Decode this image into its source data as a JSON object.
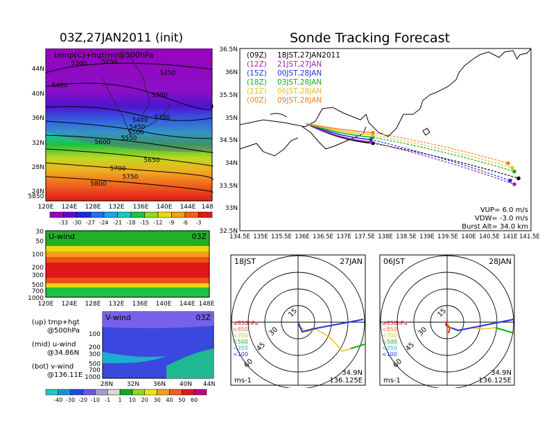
{
  "left": {
    "title": "03Z,27JAN2011 (init)",
    "map_label": "temp(C)+hgt(m)@500hPa",
    "map_lat_labels": [
      "44N",
      "40N",
      "36N",
      "32N",
      "28N",
      "24N"
    ],
    "map_lon_labels": [
      "120E",
      "124E",
      "128E",
      "132E",
      "136E",
      "140E",
      "144E",
      "148E"
    ],
    "contours": [
      "5250",
      "5250",
      "5300",
      "5300",
      "5400",
      "5300",
      "5350",
      "5400",
      "5450",
      "5500",
      "5550",
      "5600",
      "5650",
      "5700",
      "5750",
      "5800",
      "5850"
    ],
    "temp_colorbar": {
      "labels": [
        "-33",
        "-30",
        "-27",
        "-24",
        "-21",
        "-18",
        "-15",
        "-12",
        "-9",
        "-6",
        "-3"
      ],
      "colors": [
        "#9b00b8",
        "#6a00c8",
        "#1a2ad8",
        "#1f6ef0",
        "#16a8e8",
        "#18c8b8",
        "#20c040",
        "#90d828",
        "#e8d818",
        "#f0a018",
        "#f06018",
        "#e01818"
      ]
    },
    "uwind": {
      "label": "U-wind",
      "time": "03Z",
      "y_labels": [
        "30",
        "50",
        "100",
        "200",
        "300",
        "500",
        "700",
        "1000"
      ],
      "x_labels": [
        "120E",
        "124E",
        "128E",
        "132E",
        "136E",
        "140E",
        "144E",
        "148E"
      ]
    },
    "vwind": {
      "label": "V-wind",
      "time": "03Z",
      "y_labels": [
        "100",
        "200",
        "300",
        "500",
        "700",
        "1000"
      ],
      "x_labels": [
        "28N",
        "32N",
        "36N",
        "40N",
        "44N"
      ]
    },
    "notes": [
      "(up) tmp+hgt",
      "@500hPa",
      "(mid) u-wind",
      "@34.86N",
      "(bot) v-wind",
      "@136.11E"
    ],
    "wind_colorbar": {
      "labels": [
        "-40",
        "-30",
        "-20",
        "-10",
        "-1",
        "1",
        "10",
        "20",
        "30",
        "40",
        "50",
        "60"
      ],
      "colors": [
        "#1ec8c8",
        "#1890e0",
        "#1c4ae0",
        "#6a58e8",
        "#a0a0d0",
        "#d8d8d8",
        "#18a828",
        "#8cd820",
        "#f0e020",
        "#f0a020",
        "#f06020",
        "#e01818",
        "#c00080"
      ]
    }
  },
  "right": {
    "title": "Sonde Tracking Forecast",
    "legend": [
      {
        "code": "(09Z)",
        "label": "18JST,27JAN2011",
        "color": "#000000"
      },
      {
        "code": "(12Z)",
        "label": "21JST,27JAN",
        "color": "#a020c0"
      },
      {
        "code": "(15Z)",
        "label": "00JST,28JAN",
        "color": "#2030e0"
      },
      {
        "code": "(18Z)",
        "label": "03JST,28JAN",
        "color": "#10b010"
      },
      {
        "code": "(21Z)",
        "label": "06JST,28JAN",
        "color": "#e8c020"
      },
      {
        "code": "(00Z)",
        "label": "09JST,28JAN",
        "color": "#f08020"
      }
    ],
    "lat_labels": [
      "36.5N",
      "36N",
      "35.5N",
      "35N",
      "34.5N",
      "34N",
      "33.5N",
      "33N",
      "32.5N"
    ],
    "lon_labels": [
      "134.5E",
      "135E",
      "135.5E",
      "136E",
      "136.5E",
      "137E",
      "137.5E",
      "138E",
      "138.5E",
      "139E",
      "139.5E",
      "140E",
      "140.5E",
      "141E",
      "141.5E"
    ],
    "params": [
      "VUP= 6.0 m/s",
      "VDW= -3.0 m/s",
      "Burst Alt= 34.0 km"
    ]
  },
  "hodo1": {
    "time": "18JST",
    "date": "27JAN",
    "rings": [
      "15",
      "30",
      "45",
      "60"
    ],
    "levels": [
      {
        "t": "≥850hPa",
        "c": "#e01818"
      },
      {
        "t": "<850",
        "c": "#f07020"
      },
      {
        "t": "<700",
        "c": "#e8c020"
      },
      {
        "t": "<500",
        "c": "#10b010"
      },
      {
        "t": "<250",
        "c": "#20a8e8"
      },
      {
        "t": "<100",
        "c": "#2030e0"
      }
    ],
    "unit": "ms-1",
    "lat": "34.9N",
    "lon": "136.125E"
  },
  "hodo2": {
    "time": "06JST",
    "date": "28JAN",
    "rings": [
      "15",
      "30",
      "45",
      "60"
    ],
    "levels": [
      {
        "t": "≥850hPa",
        "c": "#e01818"
      },
      {
        "t": "<850",
        "c": "#f07020"
      },
      {
        "t": "<700",
        "c": "#e8c020"
      },
      {
        "t": "<500",
        "c": "#10b010"
      },
      {
        "t": "<250",
        "c": "#20a8e8"
      },
      {
        "t": "<100",
        "c": "#2030e0"
      }
    ],
    "unit": "ms-1",
    "lat": "34.9N",
    "lon": "136.125E"
  },
  "chart_data": {
    "type": "line",
    "title": "Sonde Tracking Forecast",
    "launch": {
      "lon": 136.1,
      "lat": 34.85
    },
    "series": [
      {
        "name": "18JST,27JAN2011",
        "lon": [
          136.1,
          137.7,
          141.2
        ],
        "lat": [
          34.85,
          34.42,
          33.65
        ]
      },
      {
        "name": "21JST,27JAN",
        "lon": [
          136.1,
          137.65,
          141.1
        ],
        "lat": [
          34.85,
          34.45,
          33.52
        ]
      },
      {
        "name": "00JST,28JAN",
        "lon": [
          136.1,
          137.65,
          141.0
        ],
        "lat": [
          34.85,
          34.5,
          33.6
        ]
      },
      {
        "name": "03JST,28JAN",
        "lon": [
          136.1,
          137.7,
          141.1
        ],
        "lat": [
          34.85,
          34.55,
          33.8
        ]
      },
      {
        "name": "06JST,28JAN",
        "lon": [
          136.1,
          137.7,
          141.05
        ],
        "lat": [
          34.85,
          34.6,
          33.88
        ]
      },
      {
        "name": "09JST,28JAN",
        "lon": [
          136.1,
          137.7,
          140.95
        ],
        "lat": [
          34.85,
          34.65,
          33.98
        ]
      }
    ],
    "xlim": [
      134.5,
      141.5
    ],
    "ylim": [
      32.5,
      36.5
    ]
  }
}
